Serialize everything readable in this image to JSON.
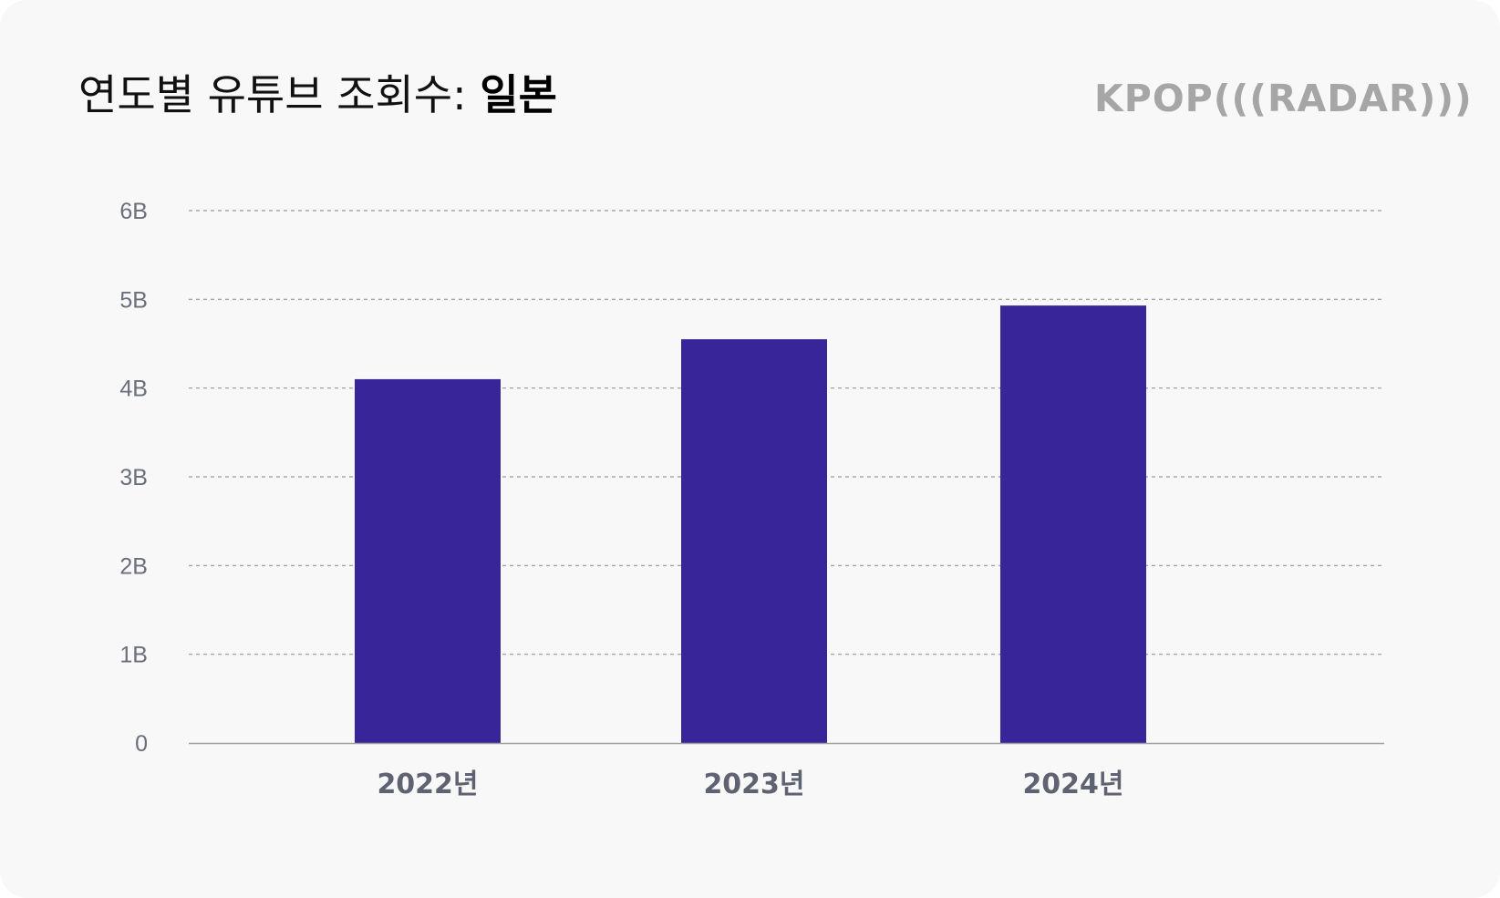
{
  "header": {
    "title_prefix": "연도별 유튜브 조회수: ",
    "title_bold": "일본",
    "logo_text": "KPOP(((RADAR)))"
  },
  "colors": {
    "bar": "#38259a",
    "grid": "#9a9a9a",
    "axis": "#a0a0a0",
    "background": "#f8f8f8"
  },
  "chart_data": {
    "type": "bar",
    "categories": [
      "2022년",
      "2023년",
      "2024년"
    ],
    "values": [
      4100000000.0,
      4550000000.0,
      4930000000.0
    ],
    "ylim": [
      0,
      6000000000.0
    ],
    "yticks": [
      0,
      1000000000.0,
      2000000000.0,
      3000000000.0,
      4000000000.0,
      5000000000.0,
      6000000000.0
    ],
    "ytick_labels": [
      "0",
      "1B",
      "2B",
      "3B",
      "4B",
      "5B",
      "6B"
    ],
    "grid": true,
    "legend": "none",
    "title": "연도별 유튜브 조회수: 일본",
    "xlabel": "",
    "ylabel": ""
  }
}
